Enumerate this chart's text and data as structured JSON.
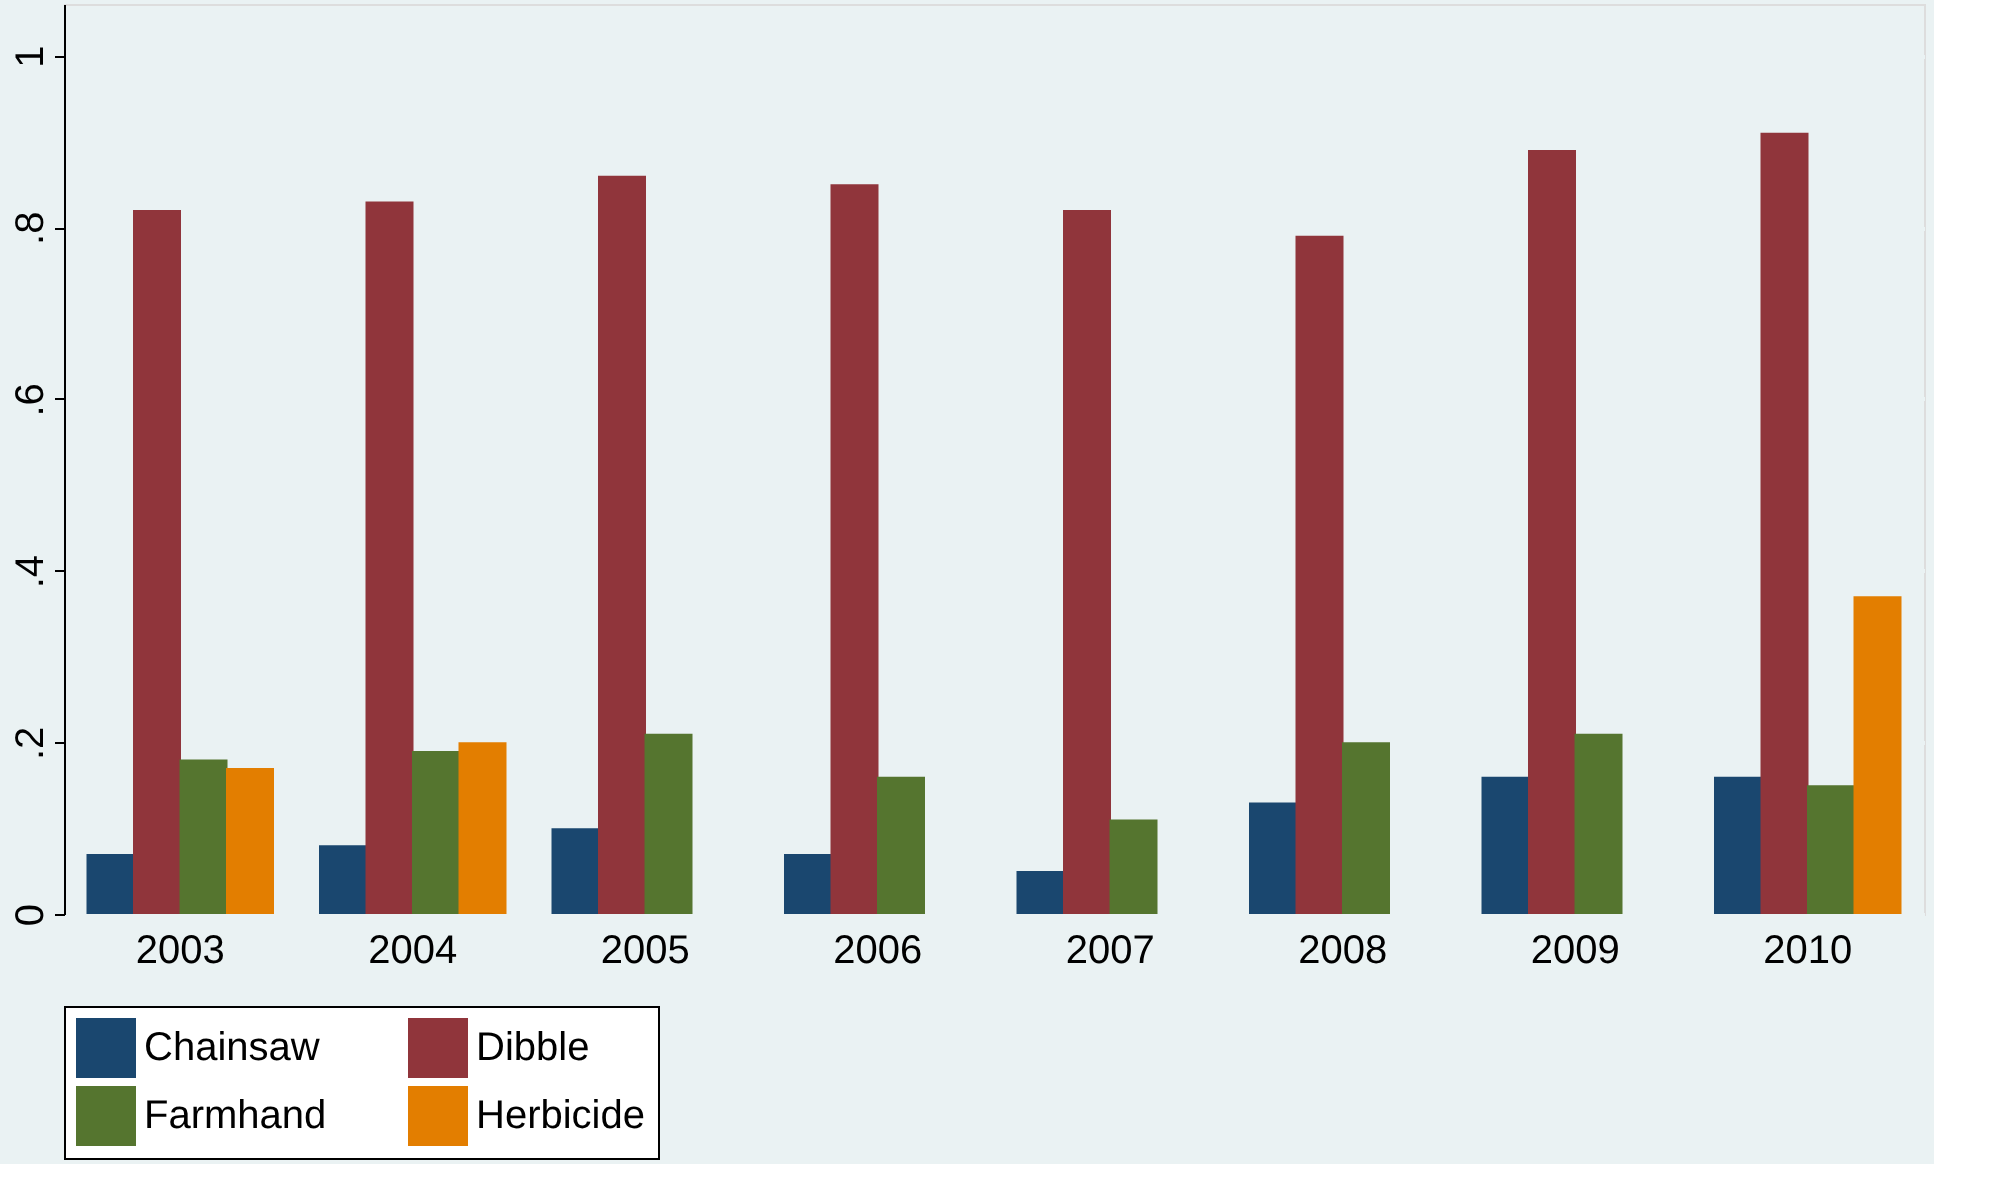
{
  "chart_data": {
    "type": "bar",
    "categories": [
      "2003",
      "2004",
      "2005",
      "2006",
      "2007",
      "2008",
      "2009",
      "2010"
    ],
    "series": [
      {
        "name": "Chainsaw",
        "color": "#1a476f",
        "values": [
          0.07,
          0.08,
          0.1,
          0.07,
          0.05,
          0.13,
          0.16,
          0.16
        ]
      },
      {
        "name": "Dibble",
        "color": "#90353b",
        "values": [
          0.82,
          0.83,
          0.86,
          0.85,
          0.82,
          0.79,
          0.89,
          0.91
        ]
      },
      {
        "name": "Farmhand",
        "color": "#55752f",
        "values": [
          0.18,
          0.19,
          0.21,
          0.16,
          0.11,
          0.2,
          0.21,
          0.15
        ]
      },
      {
        "name": "Herbicide",
        "color": "#e37e00",
        "values": [
          0.17,
          0.2,
          null,
          null,
          null,
          null,
          null,
          0.37
        ]
      }
    ],
    "ylim": [
      0,
      1.06
    ],
    "yticks": [
      0,
      {
        "value": 0.2,
        "label": ".2"
      },
      {
        "value": 0.4,
        "label": ".4"
      },
      {
        "value": 0.6,
        "label": ".6"
      },
      {
        "value": 0.8,
        "label": ".8"
      },
      1
    ],
    "grid": "y",
    "legend": "bottom"
  }
}
